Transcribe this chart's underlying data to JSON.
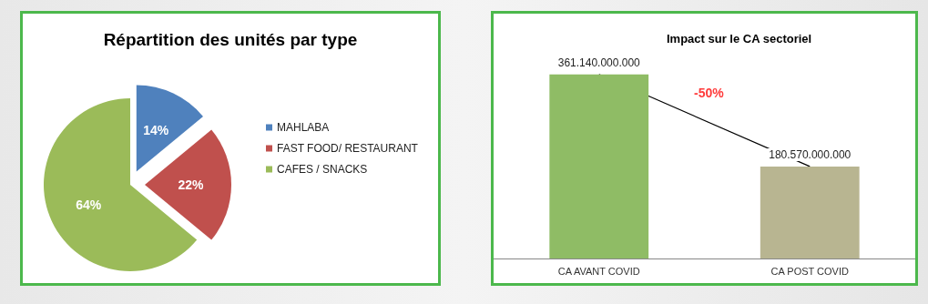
{
  "chart_data": [
    {
      "type": "pie",
      "title": "Répartition des unités par type",
      "categories": [
        "MAHLABA",
        "FAST FOOD/ RESTAURANT",
        "CAFES / SNACKS"
      ],
      "values": [
        14,
        22,
        64
      ],
      "value_labels": [
        "14%",
        "22%",
        "64%"
      ],
      "colors": [
        "#4f81bd",
        "#c0504d",
        "#9bbb59"
      ],
      "legend": "right"
    },
    {
      "type": "bar",
      "title": "Impact sur le CA sectoriel",
      "categories": [
        "CA AVANT COVID",
        "CA POST COVID"
      ],
      "series": [
        {
          "type": "bar",
          "colors": [
            "#8fbc65",
            "#b8b591"
          ],
          "values": [
            361140000000,
            180570000000
          ],
          "value_labels": [
            "361.140.000.000",
            "180.570.000.000"
          ]
        },
        {
          "type": "line",
          "color": "#000000",
          "values": [
            361140000000,
            180570000000
          ]
        }
      ],
      "annotations": [
        "-50%"
      ]
    }
  ]
}
